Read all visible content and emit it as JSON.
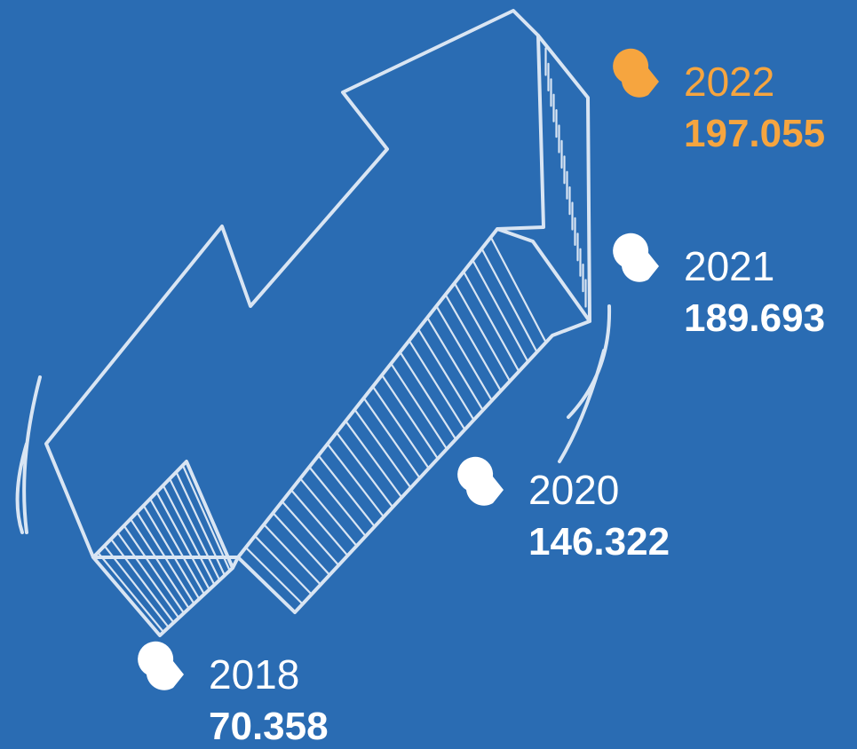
{
  "items": [
    {
      "year": "2022",
      "value": "197.055",
      "color": "#f6a53f"
    },
    {
      "year": "2021",
      "value": "189.693",
      "color": "#ffffff"
    },
    {
      "year": "2020",
      "value": "146.322",
      "color": "#ffffff"
    },
    {
      "year": "2018",
      "value": "70.358",
      "color": "#ffffff"
    }
  ]
}
